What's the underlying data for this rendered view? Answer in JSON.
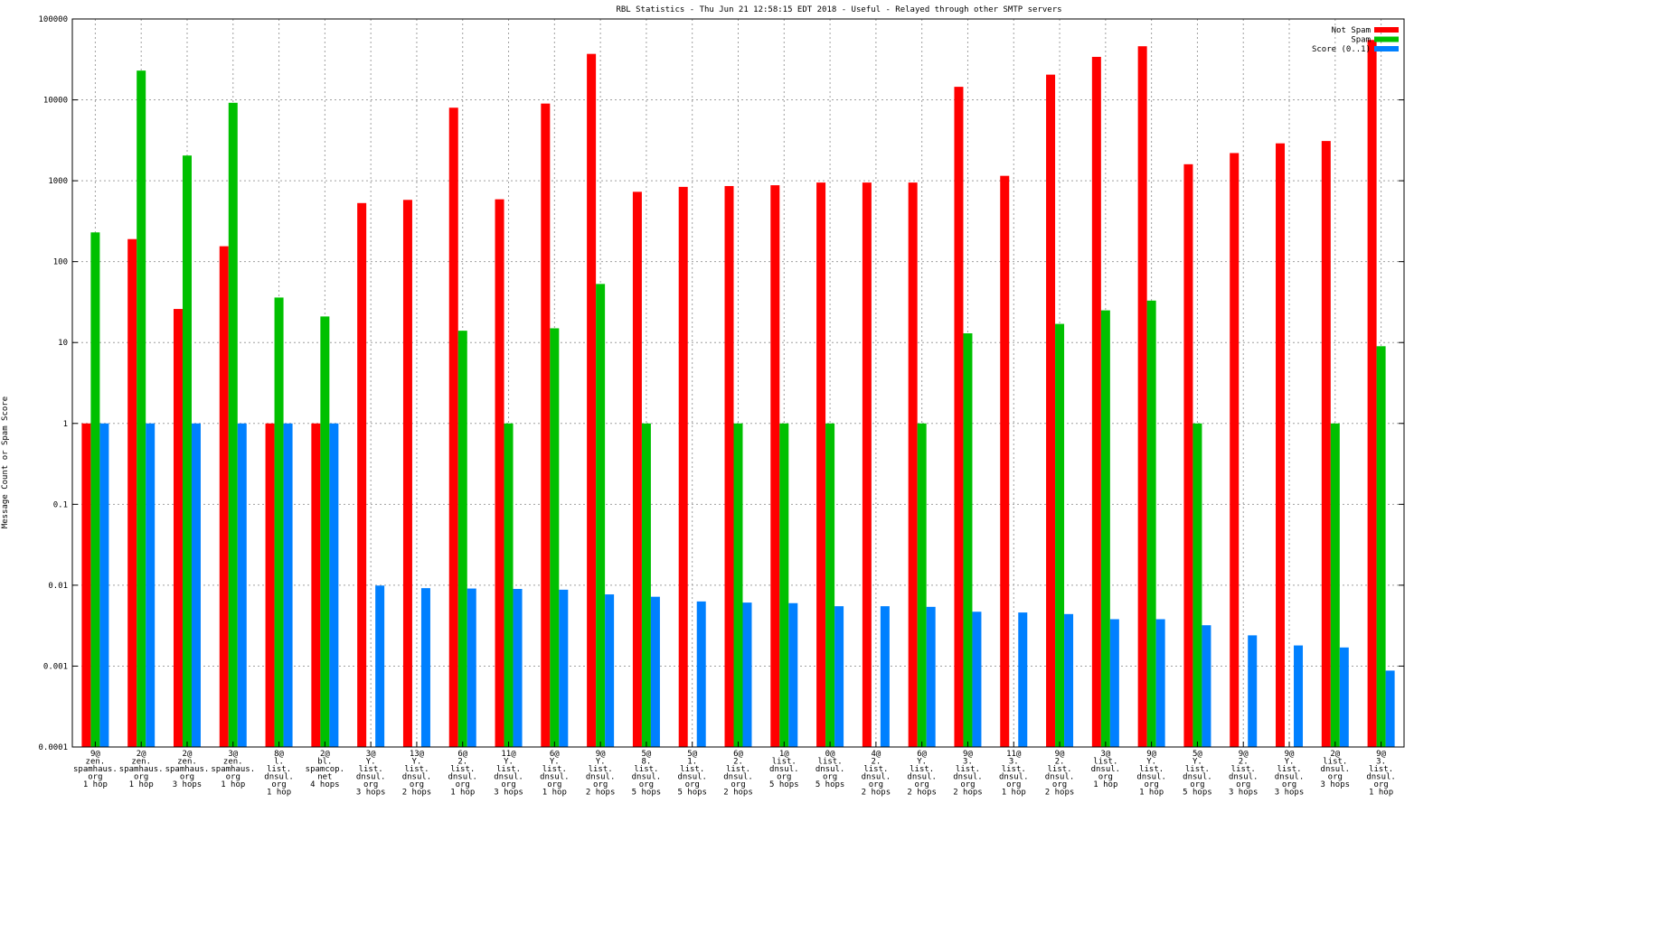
{
  "chart_data": {
    "type": "bar",
    "title": "RBL Statistics - Thu Jun 21 12:58:15 EDT 2018 - Useful - Relayed through other SMTP servers",
    "ylabel": "Message Count or Spam Score",
    "xlabel": "",
    "yscale": "log",
    "ylim": [
      0.0001,
      100000
    ],
    "yticks": [
      "0.0001",
      "0.001",
      "0.01",
      "0.1",
      "1",
      "10",
      "100",
      "1000",
      "10000",
      "100000"
    ],
    "grid": true,
    "legend_position": "top-right",
    "categories": [
      "9@\nzen.\nspamhaus.\norg\n1 hop",
      "2@\nzen.\nspamhaus.\norg\n1 hop",
      "2@\nzen.\nspamhaus.\norg\n3 hops",
      "3@\nzen.\nspamhaus.\norg\n1 hop",
      "8@\nl.\nlist.\ndnsul.\norg\n1 hop",
      "2@\nbl.\nspamcop.\nnet\n4 hops",
      "3@\nY.\nlist.\ndnsul.\norg\n3 hops",
      "13@\nY.\nlist.\ndnsul.\norg\n2 hops",
      "6@\n2.\nlist.\ndnsul.\norg\n1 hop",
      "11@\nY.\nlist.\ndnsul.\norg\n3 hops",
      "6@\nY.\nlist.\ndnsul.\norg\n1 hop",
      "9@\nY.\nlist.\ndnsul.\norg\n2 hops",
      "5@\n8.\nlist.\ndnsul.\norg\n5 hops",
      "5@\n1.\nlist.\ndnsul.\norg\n5 hops",
      "6@\n2.\nlist.\ndnsul.\norg\n2 hops",
      "1@\nlist.\ndnsul.\norg\n5 hops",
      "0@\nlist.\ndnsul.\norg\n5 hops",
      "4@\n2.\nlist.\ndnsul.\norg\n2 hops",
      "6@\nY.\nlist.\ndnsul.\norg\n2 hops",
      "9@\n3.\nlist.\ndnsul.\norg\n2 hops",
      "11@\n3.\nlist.\ndnsul.\norg\n1 hop",
      "9@\n2.\nlist.\ndnsul.\norg\n2 hops",
      "3@\nlist.\ndnsul.\norg\n1 hop",
      "9@\nY.\nlist.\ndnsul.\norg\n1 hop",
      "5@\nY.\nlist.\ndnsul.\norg\n5 hops",
      "9@\n2.\nlist.\ndnsul.\norg\n3 hops",
      "9@\nY.\nlist.\ndnsul.\norg\n3 hops",
      "2@\nlist.\ndnsul.\norg\n3 hops",
      "9@\n3.\nlist.\ndnsul.\norg\n1 hop"
    ],
    "series": [
      {
        "name": "Not Spam",
        "color": "#ff0000",
        "values": [
          1,
          190,
          26,
          155,
          1,
          1,
          530,
          580,
          8000,
          590,
          9000,
          37000,
          730,
          840,
          860,
          880,
          950,
          950,
          950,
          14500,
          1150,
          20500,
          34000,
          46000,
          1600,
          2200,
          2900,
          3100,
          55000
        ]
      },
      {
        "name": "Spam",
        "color": "#00c000",
        "values": [
          230,
          23000,
          2050,
          9200,
          36,
          21,
          null,
          null,
          14,
          1,
          15,
          53,
          1,
          null,
          1,
          1,
          1,
          null,
          1,
          13,
          null,
          17,
          25,
          33,
          1,
          null,
          null,
          1,
          9
        ]
      },
      {
        "name": "Score (0..1)",
        "color": "#0080ff",
        "values": [
          1,
          1,
          1,
          1,
          1,
          1,
          0.0099,
          0.0092,
          0.0091,
          0.009,
          0.0088,
          0.0077,
          0.0072,
          0.0063,
          0.0061,
          0.006,
          0.0055,
          0.0055,
          0.0054,
          0.0047,
          0.0046,
          0.0044,
          0.0038,
          0.0038,
          0.0032,
          0.0024,
          0.0018,
          0.0017,
          0.00088
        ]
      }
    ]
  }
}
